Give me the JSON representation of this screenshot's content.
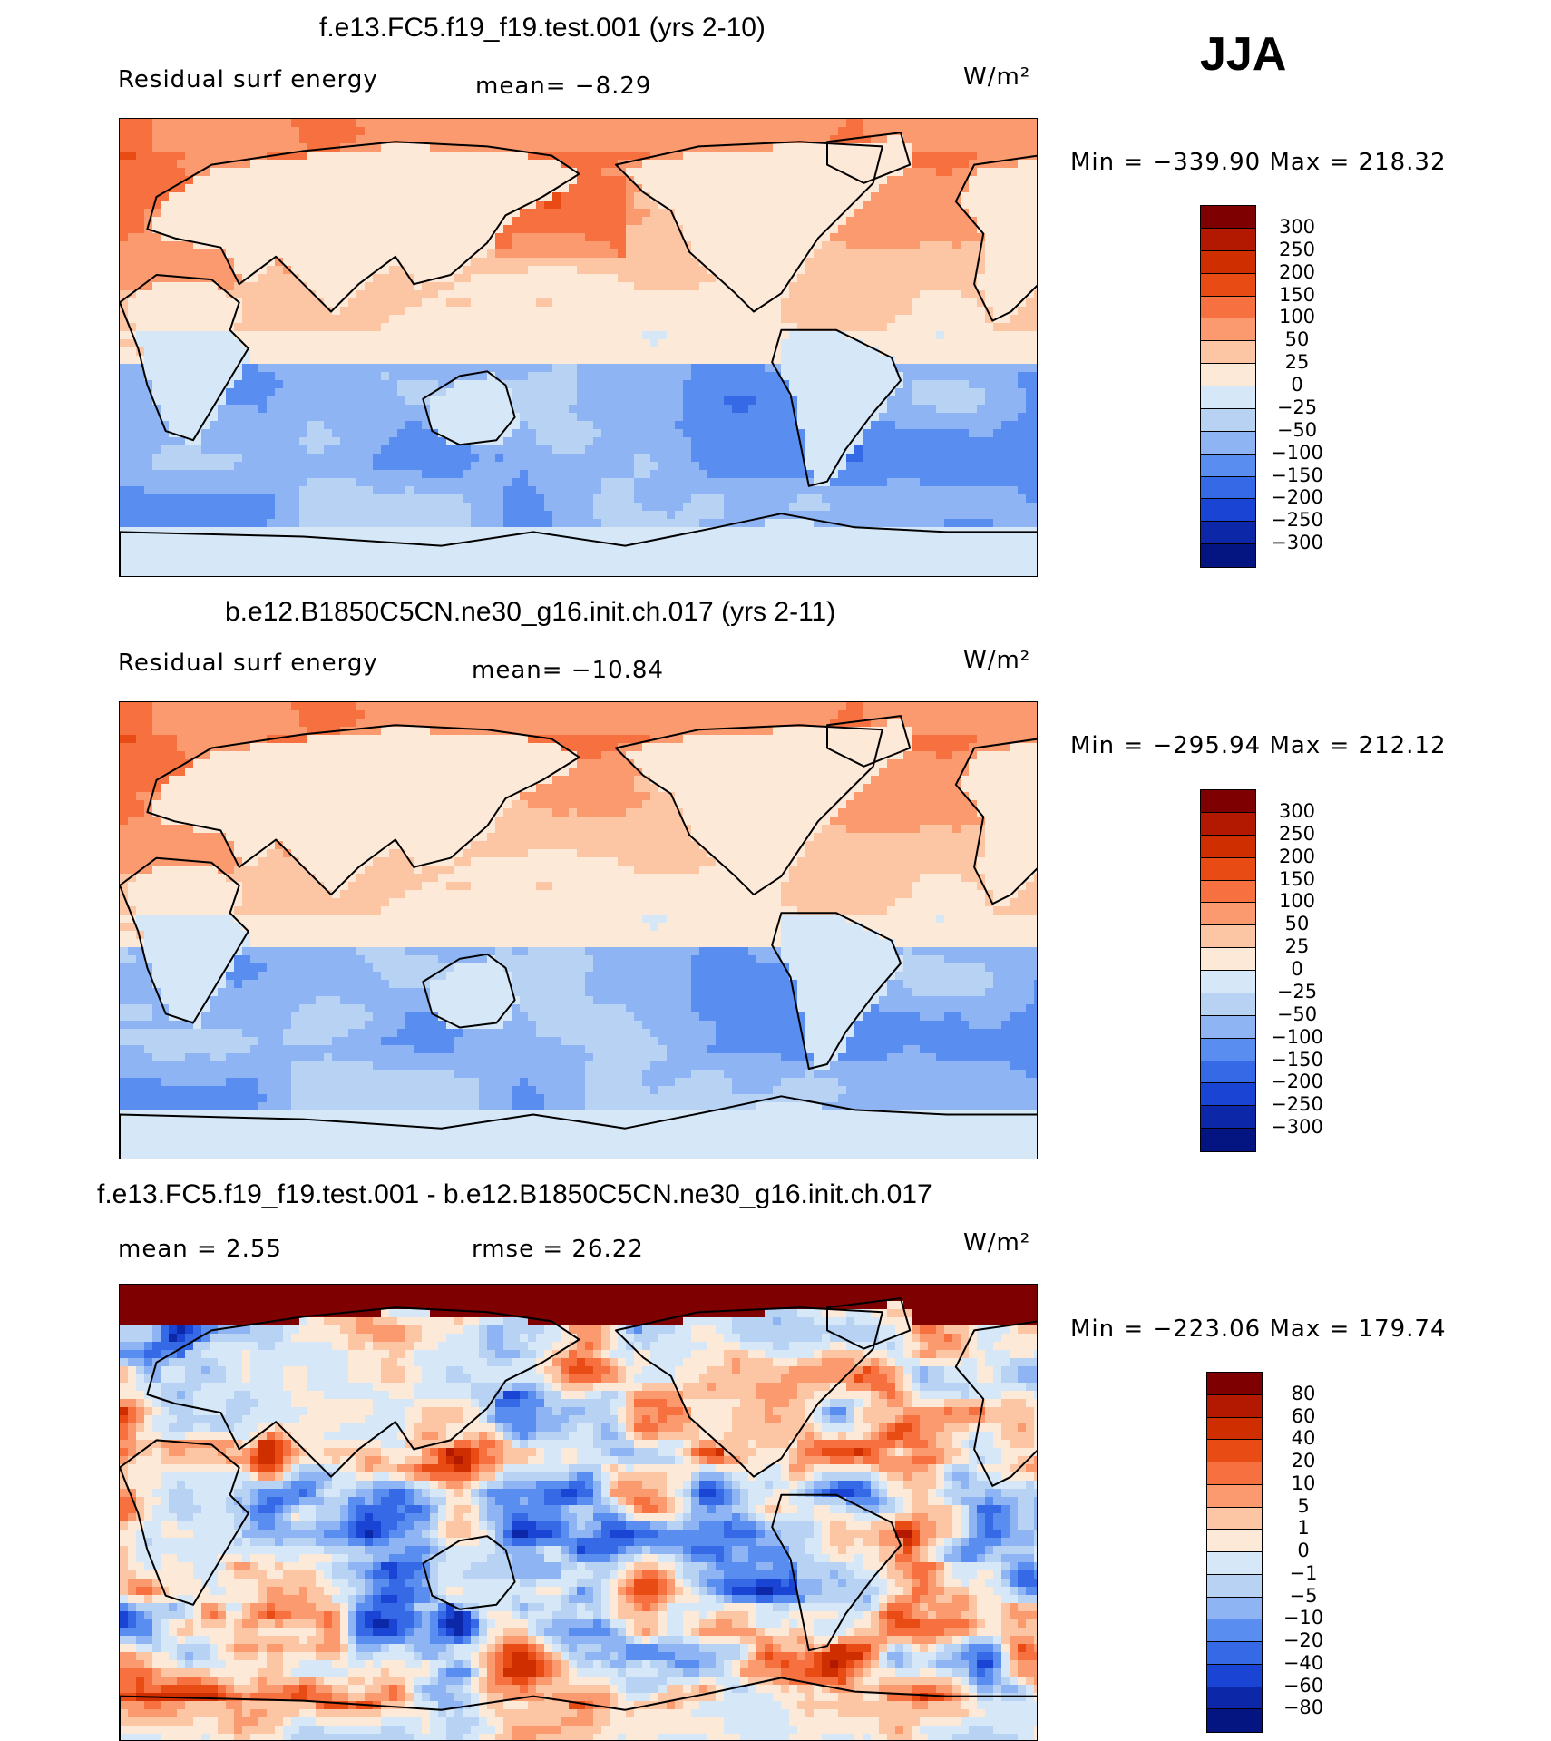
{
  "season": "JJA",
  "units": "W/m²",
  "panels": [
    {
      "title": "f.e13.FC5.f19_f19.test.001 (yrs 2-10)",
      "left_label": "Residual surf energy",
      "mid_label": "mean=   −8.29",
      "units": "W/m²",
      "minmax": "Min  =  −339.90  Max  =  218.32",
      "pattern": "a"
    },
    {
      "title": "b.e12.B1850C5CN.ne30_g16.init.ch.017 (yrs 2-11)",
      "left_label": "Residual surf energy",
      "mid_label": "mean=  −10.84",
      "units": "W/m²",
      "minmax": "Min  =  −295.94  Max  =  212.12",
      "pattern": "b"
    },
    {
      "title": "f.e13.FC5.f19_f19.test.001 - b.e12.B1850C5CN.ne30_g16.init.ch.017",
      "left_label": "mean  =     2.55",
      "mid_label": "rmse  =    26.22",
      "units": "W/m²",
      "minmax": "Min  =  −223.06  Max  =  179.74",
      "pattern": "diff"
    }
  ],
  "legend_abs": {
    "labels": [
      "300",
      "250",
      "200",
      "150",
      "100",
      "50",
      "25",
      "0",
      "−25",
      "−50",
      "−100",
      "−150",
      "−200",
      "−250",
      "−300"
    ],
    "colors": [
      "#7e0000",
      "#b31800",
      "#cf2e00",
      "#e84c14",
      "#f6713f",
      "#fb9a6e",
      "#fcc5a4",
      "#fde9d8",
      "#d6e8f8",
      "#b8d2f4",
      "#8fb4f3",
      "#5a8df0",
      "#3669e6",
      "#1a45d4",
      "#0c28a8",
      "#041480"
    ]
  },
  "legend_diff": {
    "labels": [
      "80",
      "60",
      "40",
      "20",
      "10",
      "5",
      "1",
      "0",
      "−1",
      "−5",
      "−10",
      "−20",
      "−40",
      "−60",
      "−80"
    ],
    "colors": [
      "#7e0000",
      "#b31800",
      "#cf2e00",
      "#e84c14",
      "#f6713f",
      "#fb9a6e",
      "#fcc5a4",
      "#fde9d8",
      "#d6e8f8",
      "#b8d2f4",
      "#8fb4f3",
      "#5a8df0",
      "#3669e6",
      "#1a45d4",
      "#0c28a8",
      "#041480"
    ]
  }
}
